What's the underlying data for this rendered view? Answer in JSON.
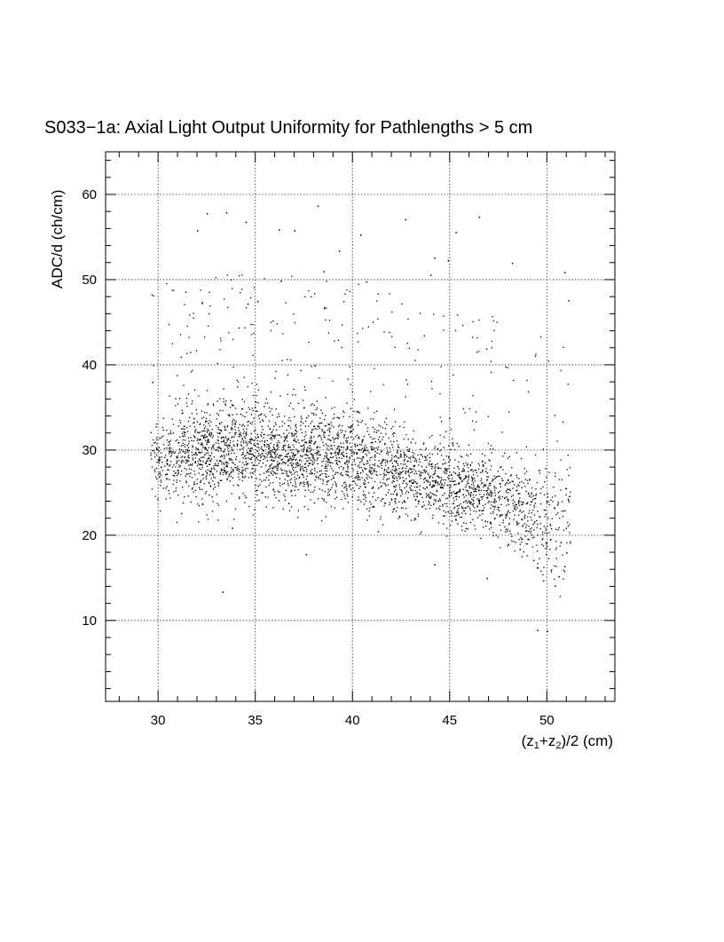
{
  "chart_data": {
    "type": "scatter",
    "title": "S033−1a: Axial Light Output Uniformity for Pathlengths > 5 cm",
    "xlabel": {
      "base": "(z",
      "sub1": "1",
      "mid": "+z",
      "sub2": "2",
      "tail": ")/2 (cm)"
    },
    "ylabel": "ADC/d (ch/cm)",
    "xlim": [
      27.3,
      53.5
    ],
    "ylim": [
      0.5,
      65
    ],
    "xticks": [
      30,
      35,
      40,
      45,
      50
    ],
    "yticks": [
      10,
      20,
      30,
      40,
      50,
      60
    ],
    "x_minor_step": 1,
    "y_minor_step": 2,
    "grid": true,
    "grid_style": "dotted",
    "marker_color": "#000000",
    "density_profile": [
      {
        "x": 30,
        "y_center": 29,
        "y_spread": 3.5,
        "weight": 0.6
      },
      {
        "x": 32,
        "y_center": 29.5,
        "y_spread": 4.0,
        "weight": 1.0
      },
      {
        "x": 35,
        "y_center": 30,
        "y_spread": 4.0,
        "weight": 1.0
      },
      {
        "x": 38,
        "y_center": 29.5,
        "y_spread": 4.0,
        "weight": 1.0
      },
      {
        "x": 40,
        "y_center": 29,
        "y_spread": 4.0,
        "weight": 1.0
      },
      {
        "x": 43,
        "y_center": 27,
        "y_spread": 3.5,
        "weight": 0.9
      },
      {
        "x": 45,
        "y_center": 26,
        "y_spread": 3.5,
        "weight": 0.9
      },
      {
        "x": 47,
        "y_center": 25,
        "y_spread": 3.5,
        "weight": 0.8
      },
      {
        "x": 49,
        "y_center": 23,
        "y_spread": 4.0,
        "weight": 0.6
      },
      {
        "x": 50.5,
        "y_center": 22,
        "y_spread": 5.0,
        "weight": 0.35
      }
    ],
    "n_points": 3600,
    "x_range_of_points": [
      29.6,
      51.2
    ],
    "high_outliers": [
      [
        32.5,
        57.8
      ],
      [
        32.0,
        55.8
      ],
      [
        33.5,
        57.9
      ],
      [
        34.5,
        56.8
      ],
      [
        36.2,
        55.9
      ],
      [
        38.2,
        58.7
      ],
      [
        37.0,
        55.8
      ],
      [
        40.4,
        55.3
      ],
      [
        42.7,
        57.1
      ],
      [
        46.5,
        57.4
      ],
      [
        45.3,
        55.6
      ],
      [
        38.5,
        51.0
      ],
      [
        39.3,
        53.4
      ],
      [
        44.2,
        52.6
      ],
      [
        44.9,
        52.3
      ],
      [
        48.2,
        52.0
      ],
      [
        31.4,
        48.6
      ],
      [
        34.6,
        47.2
      ],
      [
        35.1,
        47.5
      ],
      [
        36.3,
        49.9
      ],
      [
        40.7,
        49.8
      ],
      [
        44.0,
        50.6
      ],
      [
        50.9,
        50.9
      ],
      [
        51.1,
        47.6
      ],
      [
        29.7,
        38.0
      ]
    ],
    "low_outliers": [
      [
        33.3,
        13.4
      ],
      [
        44.2,
        16.6
      ],
      [
        37.6,
        17.8
      ],
      [
        33.8,
        20.9
      ],
      [
        41.3,
        20.5
      ],
      [
        49.5,
        8.9
      ],
      [
        50.0,
        8.8
      ],
      [
        50.6,
        15.2
      ],
      [
        50.9,
        16.4
      ],
      [
        51.0,
        18.0
      ],
      [
        50.2,
        16.0
      ],
      [
        49.8,
        14.7
      ],
      [
        46.9,
        15.0
      ],
      [
        49.3,
        17.1
      ],
      [
        48.6,
        18.4
      ],
      [
        50.4,
        14.1
      ],
      [
        48.0,
        19.0
      ],
      [
        45.9,
        20.8
      ],
      [
        49.0,
        19.6
      ],
      [
        50.7,
        19.2
      ],
      [
        34.5,
        24.5
      ],
      [
        36.7,
        23.8
      ]
    ]
  }
}
